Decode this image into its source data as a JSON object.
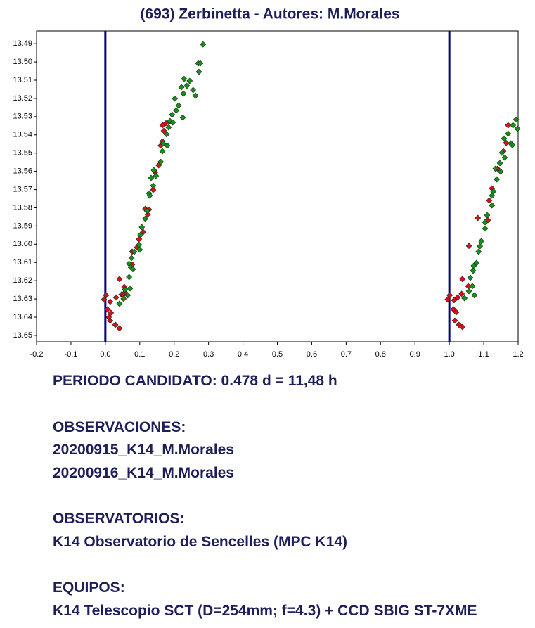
{
  "chart_data": {
    "type": "scatter",
    "title": "(693) Zerbinetta - Autores: M.Morales",
    "xlim": [
      -0.2,
      1.2
    ],
    "xticks": [
      -0.2,
      -0.1,
      {
        "value": 0,
        "label": "0.0"
      },
      0.1,
      0.2,
      0.3,
      0.4,
      0.5,
      0.6,
      0.7,
      0.8,
      0.9,
      {
        "value": 1,
        "label": "1.0"
      },
      1.1,
      1.2
    ],
    "ylim": [
      13.6535,
      13.483
    ],
    "yticks": [
      13.49,
      {
        "value": 13.5,
        "label": "13.50"
      },
      13.51,
      13.52,
      13.53,
      13.54,
      13.55,
      13.56,
      13.57,
      13.58,
      13.59,
      {
        "value": 13.6,
        "label": "13.60"
      },
      13.61,
      13.62,
      13.63,
      13.64,
      13.65
    ],
    "vlines": [
      0,
      1
    ],
    "vline_color": "#00007f",
    "series": [
      {
        "color": "#d41414",
        "x": [
          0.002,
          -0.004,
          0.014,
          0.031,
          0.047,
          0.057,
          0.055,
          0.041,
          0.006,
          0.016,
          0.014,
          0.029,
          0.041,
          0.01,
          0.051,
          0.078,
          0.092,
          0.11,
          0.116,
          0.123,
          0.139,
          0.145,
          0.155,
          0.161,
          0.166,
          0.166,
          0.176,
          0.17,
          0.127,
          0.098,
          0.078,
          1.001,
          0.995,
          1.014,
          1.024,
          1.036,
          1.055,
          1.038,
          1.012,
          1.02,
          1.016,
          1.028,
          1.038,
          1.057,
          1.083,
          1.112,
          1.116,
          1.124,
          1.14,
          1.157,
          1.165,
          1.171
        ],
        "values": [
          13.628,
          13.6303,
          13.6315,
          13.6292,
          13.6276,
          13.6265,
          13.6234,
          13.6191,
          13.6357,
          13.6376,
          13.6419,
          13.6442,
          13.6461,
          13.64,
          13.628,
          13.6041,
          13.6018,
          13.5933,
          13.5806,
          13.5837,
          13.5702,
          13.5605,
          13.5567,
          13.5459,
          13.5436,
          13.5347,
          13.5336,
          13.5378,
          13.581,
          13.5972,
          13.6111,
          13.628,
          13.6303,
          13.6307,
          13.6292,
          13.6272,
          13.623,
          13.6191,
          13.6357,
          13.6373,
          13.6419,
          13.6442,
          13.6454,
          13.6009,
          13.5856,
          13.5868,
          13.576,
          13.5694,
          13.5586,
          13.549,
          13.5444,
          13.5347
        ]
      },
      {
        "color": "#129412",
        "x": [
          0.284,
          0.27,
          0.276,
          0.272,
          0.229,
          0.245,
          0.237,
          0.255,
          0.262,
          0.221,
          0.227,
          0.202,
          0.213,
          0.206,
          0.194,
          0.225,
          0.188,
          0.196,
          0.184,
          0.178,
          0.168,
          0.18,
          0.166,
          0.161,
          0.141,
          0.147,
          0.133,
          0.139,
          0.127,
          0.129,
          0.121,
          0.116,
          0.106,
          0.102,
          0.098,
          0.1,
          0.084,
          0.076,
          0.069,
          0.074,
          0.08,
          0.069,
          0.072,
          0.057,
          0.065,
          0.053,
          0.041,
          1.194,
          1.198,
          1.185,
          1.179,
          1.183,
          1.171,
          1.159,
          1.153,
          1.161,
          1.147,
          1.149,
          1.134,
          1.138,
          1.128,
          1.124,
          1.124,
          1.11,
          1.104,
          1.104,
          1.093,
          1.089,
          1.085,
          1.079,
          1.071,
          1.069,
          1.061,
          1.067,
          1.073,
          1.057,
          1.044
        ],
        "values": [
          13.4904,
          13.5008,
          13.5008,
          13.5054,
          13.5093,
          13.5104,
          13.5131,
          13.5154,
          13.5185,
          13.5139,
          13.5174,
          13.5201,
          13.5239,
          13.5266,
          13.5289,
          13.5305,
          13.5324,
          13.5332,
          13.5359,
          13.5397,
          13.5447,
          13.5459,
          13.549,
          13.5548,
          13.5594,
          13.5625,
          13.5636,
          13.5679,
          13.5721,
          13.5733,
          13.5817,
          13.586,
          13.5906,
          13.5949,
          13.6003,
          13.603,
          13.6041,
          13.6076,
          13.6107,
          13.6126,
          13.6137,
          13.618,
          13.6242,
          13.6249,
          13.628,
          13.6299,
          13.6326,
          13.5316,
          13.5366,
          13.5347,
          13.5447,
          13.5456,
          13.5393,
          13.542,
          13.5498,
          13.5525,
          13.5555,
          13.5602,
          13.5586,
          13.5644,
          13.571,
          13.5733,
          13.5787,
          13.5841,
          13.5879,
          13.5914,
          13.5983,
          13.6011,
          13.6041,
          13.6103,
          13.6118,
          13.6145,
          13.6184,
          13.623,
          13.628,
          13.6257,
          13.6296
        ]
      }
    ]
  },
  "text_blocks": [
    [
      "PERIODO CANDIDATO: 0.478 d = 11,48 h"
    ],
    [
      "OBSERVACIONES:",
      "20200915_K14_M.Morales",
      "20200916_K14_M.Morales"
    ],
    [
      "OBSERVATORIOS:",
      "K14 Observatorio de Sencelles (MPC K14)"
    ],
    [
      "EQUIPOS:",
      "K14 Telescopio SCT (D=254mm; f=4.3) + CCD SBIG ST-7XME"
    ]
  ]
}
